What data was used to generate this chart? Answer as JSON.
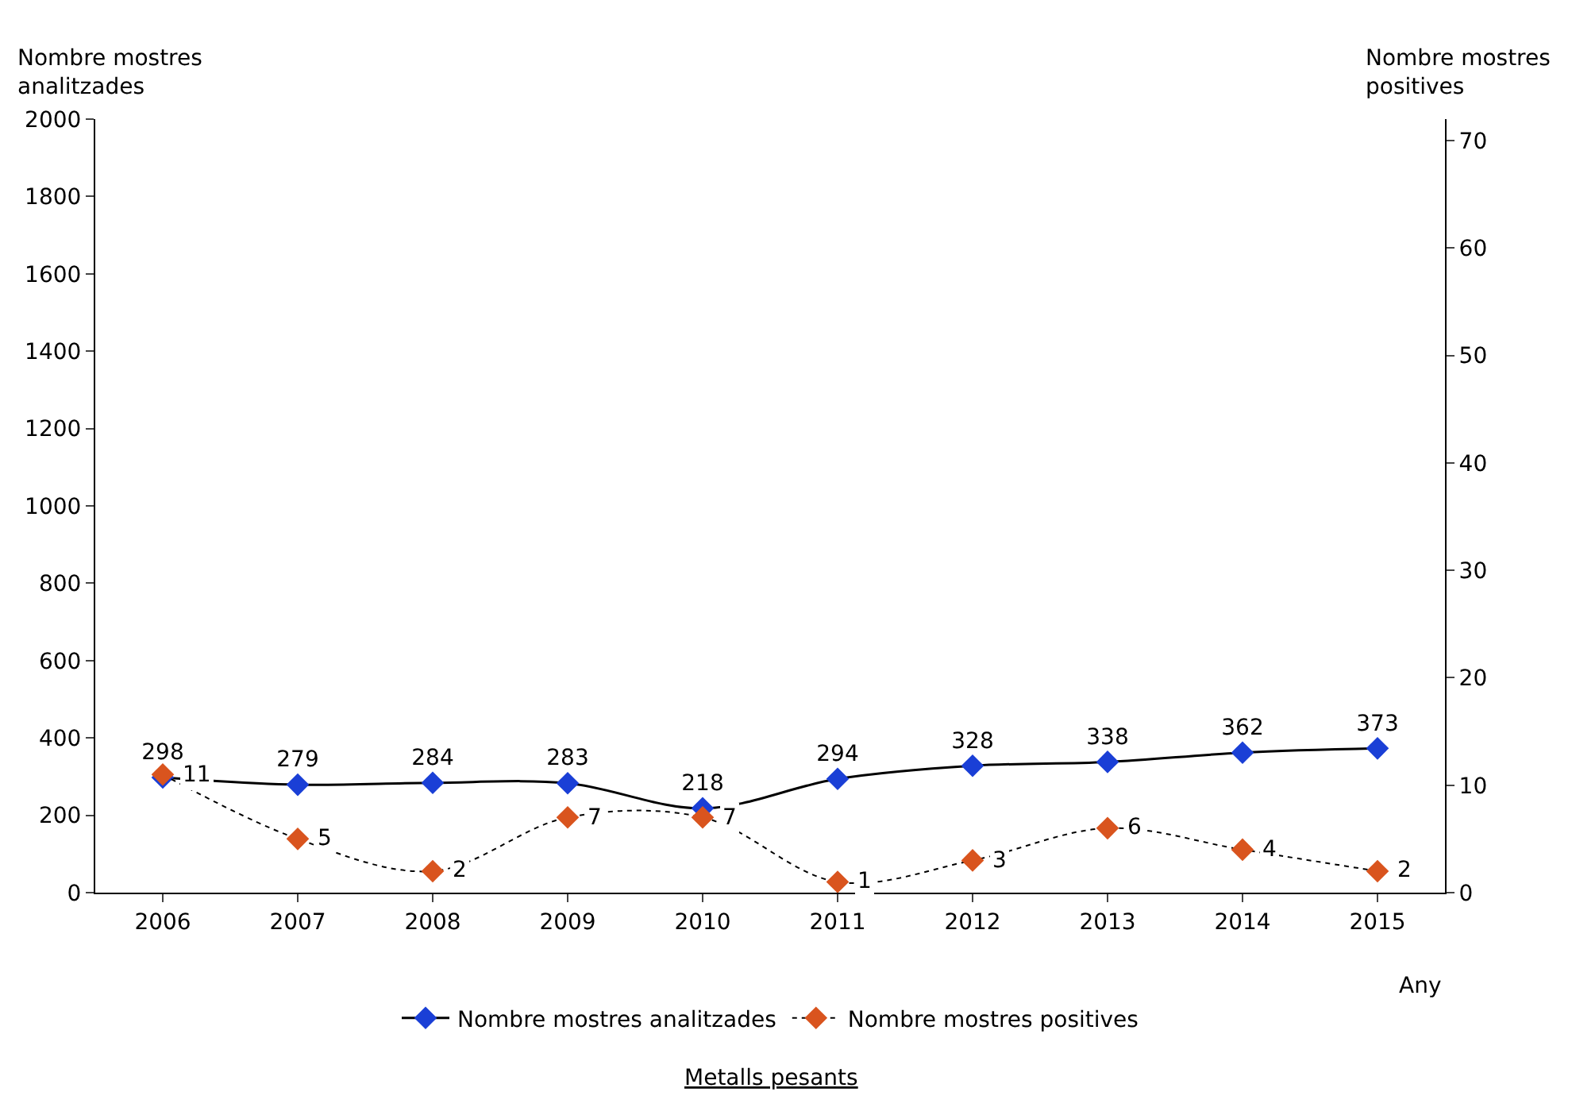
{
  "chart_data": {
    "type": "line",
    "xlabel": "Any",
    "ylabel": "Nombre mostres analitzades",
    "y2label": "Nombre mostres positives",
    "categories": [
      "2006",
      "2007",
      "2008",
      "2009",
      "2010",
      "2011",
      "2012",
      "2013",
      "2014",
      "2015"
    ],
    "series": [
      {
        "name": "Nombre mostres analitzades",
        "color": "#1a3fd6",
        "values": [
          298,
          279,
          284,
          283,
          218,
          294,
          328,
          338,
          362,
          373
        ],
        "line_style": "solid"
      },
      {
        "name": "Nombre mostres positives",
        "color": "#d9541e",
        "values": [
          11,
          5,
          2,
          7,
          7,
          1,
          3,
          6,
          4,
          2
        ],
        "axis": "y2",
        "line_style": "dotted"
      }
    ],
    "ylim": [
      0,
      2000
    ],
    "yticks": [
      0,
      200,
      400,
      600,
      800,
      1000,
      1200,
      1400,
      1600,
      1800,
      2000
    ],
    "y2lim": [
      0,
      72
    ],
    "y2ticks": [
      0,
      10,
      20,
      30,
      40,
      50,
      60,
      70
    ],
    "marker": "diamond",
    "data_labels": true,
    "legend": "bottom",
    "annotations": [
      "Metalls pesants"
    ]
  }
}
